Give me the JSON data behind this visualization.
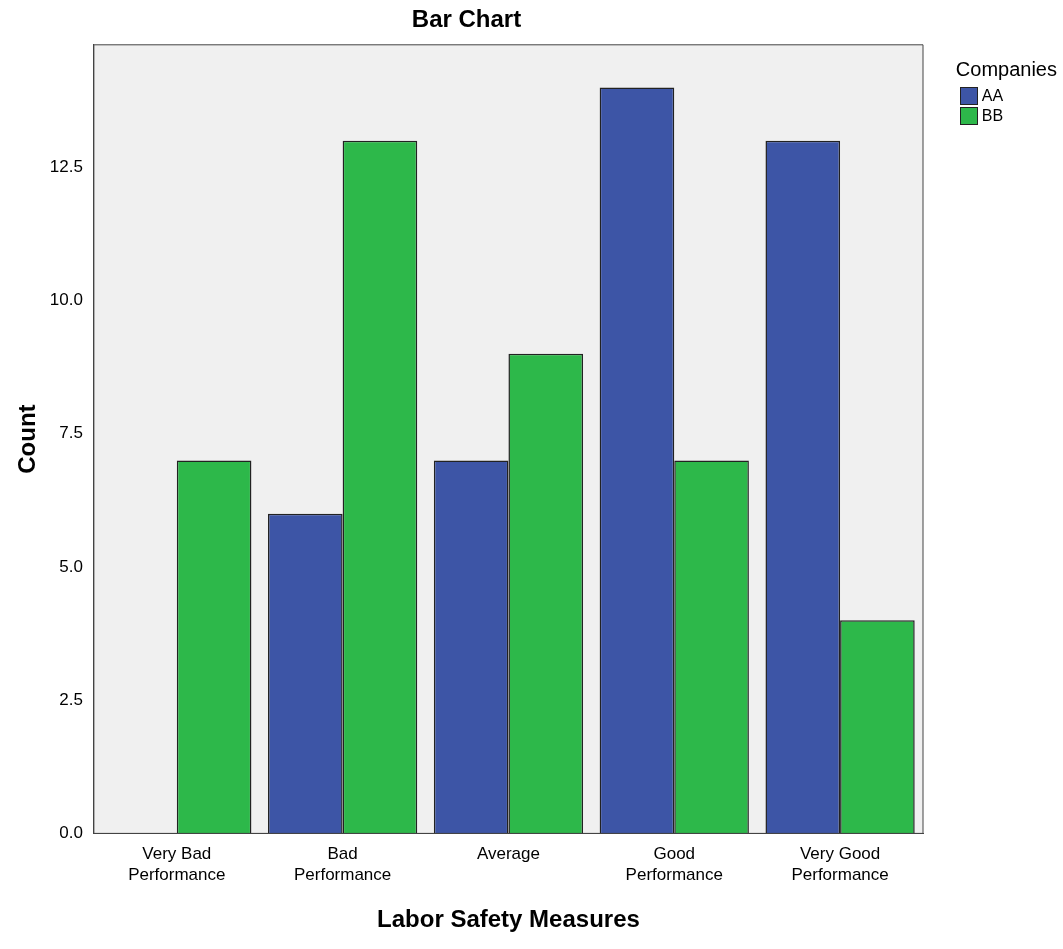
{
  "chart_data": {
    "type": "bar",
    "title": "Bar Chart",
    "xlabel": "Labor Safety Measures",
    "ylabel": "Count",
    "legend_title": "Companies",
    "legend": "top right",
    "grid": false,
    "categories": [
      "Very Bad Performance",
      "Bad Performance",
      "Average",
      "Good Performance",
      "Very Good Performance"
    ],
    "series": [
      {
        "name": "AA",
        "color": "#3d55a6",
        "values": [
          0,
          6,
          7,
          14,
          13
        ]
      },
      {
        "name": "BB",
        "color": "#2db84a",
        "values": [
          7,
          13,
          9,
          7,
          4
        ]
      }
    ],
    "ylim": [
      0,
      14.8
    ],
    "yticks": [
      {
        "value": 0,
        "label": "0.0"
      },
      {
        "value": 2.5,
        "label": "2.5"
      },
      {
        "value": 5,
        "label": "5.0"
      },
      {
        "value": 7.5,
        "label": "7.5"
      },
      {
        "value": 10,
        "label": "10.0"
      },
      {
        "value": 12.5,
        "label": "12.5"
      }
    ]
  }
}
